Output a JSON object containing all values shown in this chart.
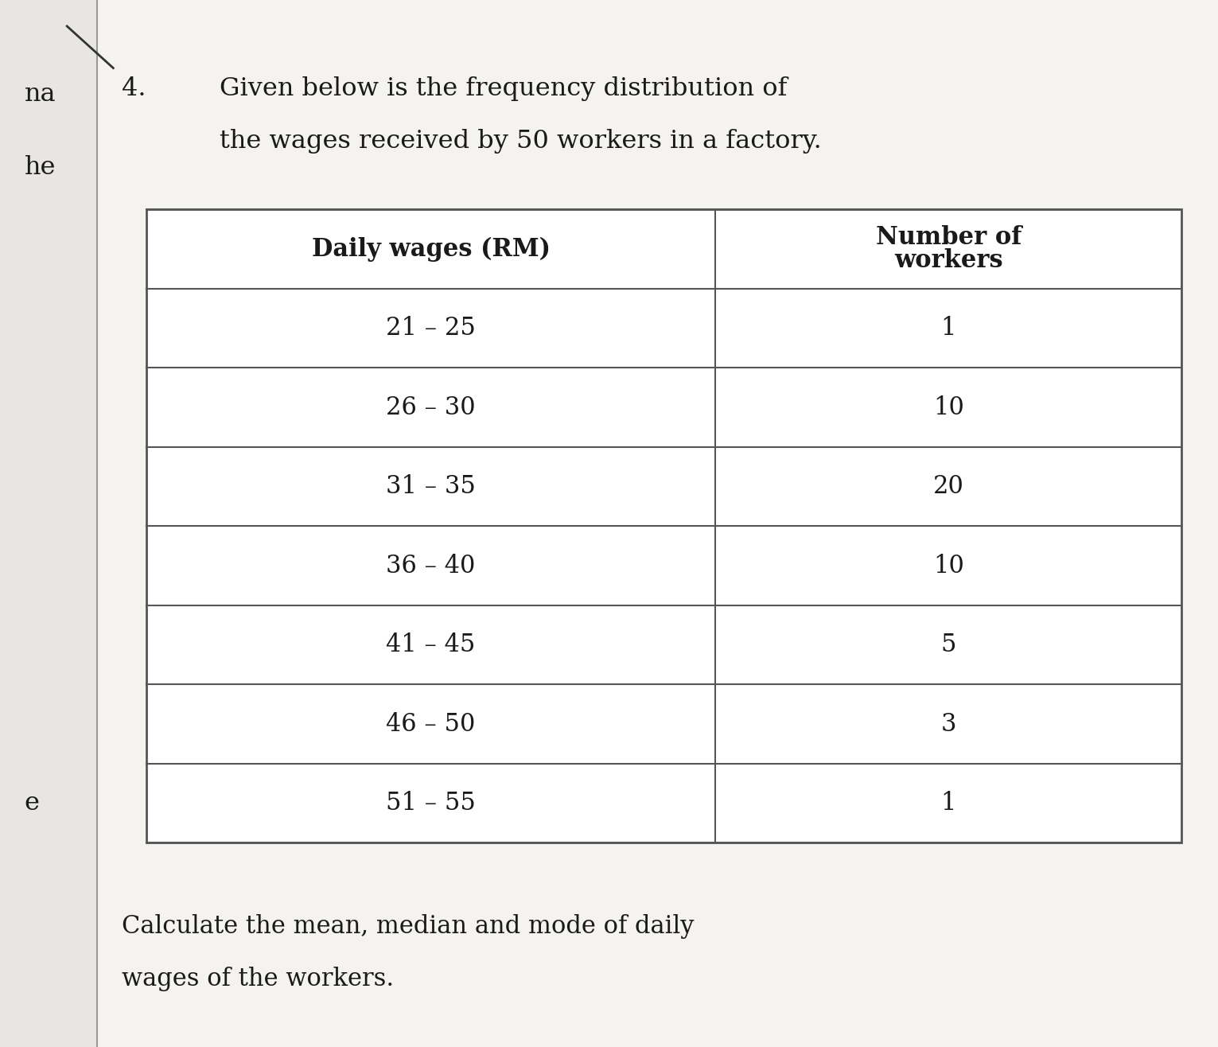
{
  "title_number": "4.",
  "title_text_line1": "Given below is the frequency distribution of",
  "title_text_line2": "the wages received by 50 workers in a factory.",
  "col1_header": "Daily wages (RM)",
  "col2_header_line1": "Number of",
  "col2_header_line2": "workers",
  "rows": [
    [
      "21 – 25",
      "1"
    ],
    [
      "26 – 30",
      "10"
    ],
    [
      "31 – 35",
      "20"
    ],
    [
      "36 – 40",
      "10"
    ],
    [
      "41 – 45",
      "5"
    ],
    [
      "46 – 50",
      "3"
    ],
    [
      "51 – 55",
      "1"
    ]
  ],
  "footer_line1": "Calculate the mean, median and mode of daily",
  "footer_line2": "wages of the workers.",
  "bg_color": "#f0eeeb",
  "table_bg": "#ffffff",
  "left_margin_color": "#e8e6e3",
  "text_color": "#1a1a1a",
  "border_color": "#555555",
  "header_font_size": 22,
  "body_font_size": 22,
  "title_font_size": 23,
  "footer_font_size": 22
}
